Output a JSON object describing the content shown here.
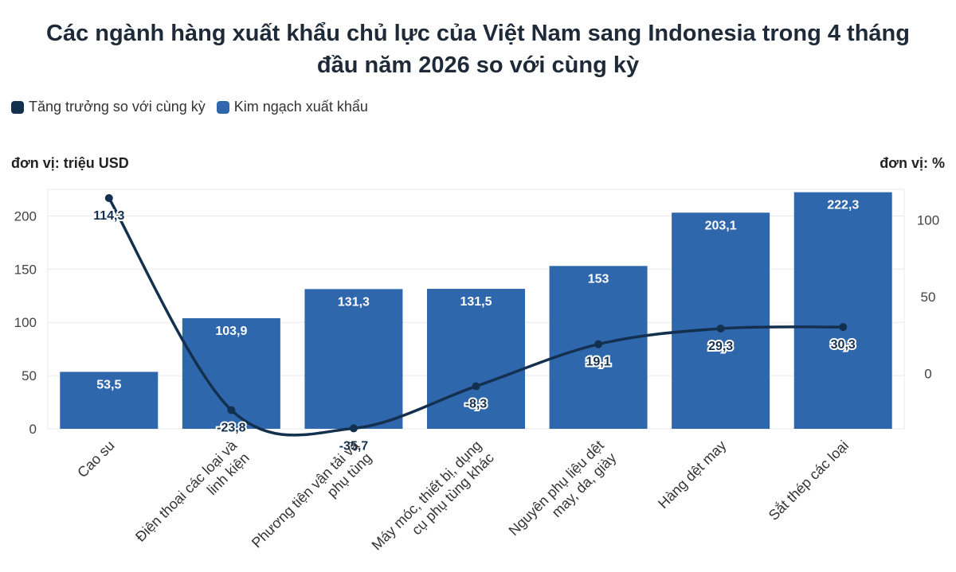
{
  "title_line1": "Các ngành hàng xuất khẩu chủ lực của Việt Nam sang Indonesia trong 4 tháng",
  "title_line2": "đầu năm 2026 so với cùng kỳ",
  "legend": {
    "growth": "Tăng trưởng so với cùng kỳ",
    "value": "Kim ngạch xuất khẩu"
  },
  "unit_left": "đơn vị: triệu USD",
  "unit_right": "đơn vị: %",
  "colors": {
    "bar": "#2f67ad",
    "line": "#14304f",
    "grid": "#e6e9ee"
  },
  "chart_data": {
    "type": "bar+line",
    "categories": [
      [
        "Cao su"
      ],
      [
        "Điện thoại các loại và",
        "linh kiện"
      ],
      [
        "Phương tiện vận tải và",
        "phụ tùng"
      ],
      [
        "Máy móc, thiết bị, dụng",
        "cụ phụ tùng khác"
      ],
      [
        "Nguyên phụ liệu dệt",
        "may, da, giày"
      ],
      [
        "Hàng dệt may"
      ],
      [
        "Sắt thép các loại"
      ]
    ],
    "series": [
      {
        "name": "Kim ngạch xuất khẩu",
        "axis": "left",
        "type": "bar",
        "values": [
          53.5,
          103.9,
          131.3,
          131.5,
          153,
          203.1,
          222.3
        ],
        "labels": [
          "53,5",
          "103,9",
          "131,3",
          "131,5",
          "153",
          "203,1",
          "222,3"
        ]
      },
      {
        "name": "Tăng trưởng so với cùng kỳ",
        "axis": "right",
        "type": "line",
        "values": [
          114.3,
          -23.8,
          -35.7,
          -8.3,
          19.1,
          29.3,
          30.3
        ],
        "labels": [
          "114,3",
          "-23,8",
          "-35,7",
          "-8,3",
          "19,1",
          "29,3",
          "30,3"
        ]
      }
    ],
    "y_left": {
      "min": 0,
      "max": 225,
      "ticks": [
        0,
        50,
        100,
        150,
        200
      ]
    },
    "y_right": {
      "min": -36,
      "max": 120,
      "ticks": [
        0,
        50,
        100
      ]
    },
    "grid": true,
    "legend_position": "top-left"
  }
}
